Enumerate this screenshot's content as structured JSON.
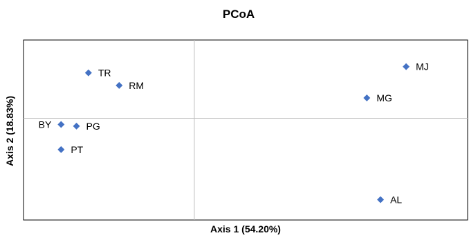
{
  "chart_data": {
    "type": "scatter",
    "title": "PCoA",
    "xlabel": "Axis 1 (54.20%)",
    "ylabel": "Axis 2 (18.83%)",
    "xlim": [
      -1.0,
      1.6
    ],
    "ylim": [
      -0.65,
      0.5
    ],
    "grid": false,
    "reference_lines": {
      "x": 0,
      "y": 0
    },
    "marker": {
      "shape": "diamond",
      "color": "#4472C4"
    },
    "points": [
      {
        "label": "TR",
        "x": -0.62,
        "y": 0.29
      },
      {
        "label": "RM",
        "x": -0.44,
        "y": 0.21
      },
      {
        "label": "BY",
        "x": -0.78,
        "y": -0.04
      },
      {
        "label": "PG",
        "x": -0.69,
        "y": -0.05
      },
      {
        "label": "PT",
        "x": -0.78,
        "y": -0.2
      },
      {
        "label": "MJ",
        "x": 1.24,
        "y": 0.33
      },
      {
        "label": "MG",
        "x": 1.01,
        "y": 0.13
      },
      {
        "label": "AL",
        "x": 1.09,
        "y": -0.52
      }
    ]
  }
}
